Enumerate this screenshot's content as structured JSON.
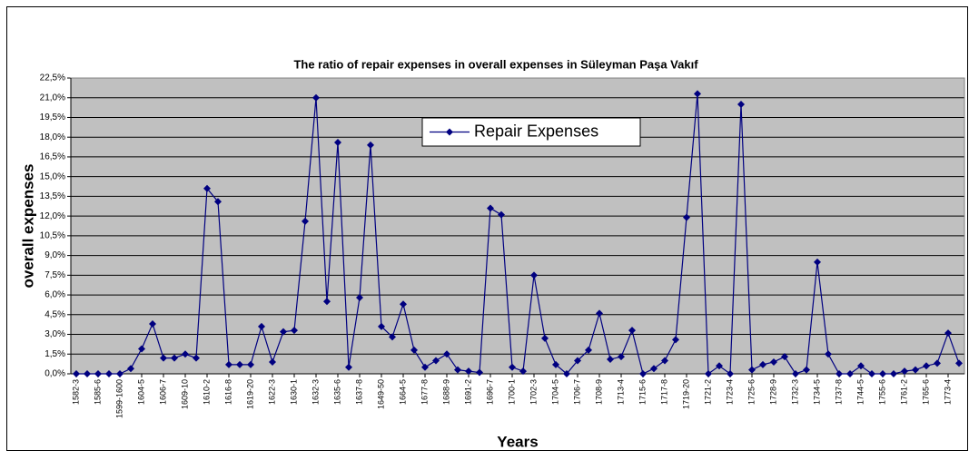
{
  "chart_data": {
    "type": "line",
    "title": "The ratio of repair expenses in overall expenses in Süleyman Paşa Vakıf",
    "x_label": "Years",
    "y_label": "overall expenses",
    "categories": [
      "1582-3",
      null,
      "1585-6",
      null,
      "1599-1600",
      null,
      "1604-5",
      null,
      "1606-7",
      null,
      "1609-10",
      null,
      "1610-2",
      null,
      "1616-8",
      null,
      "1619-20",
      null,
      "1622-3",
      null,
      "1630-1",
      null,
      "1632-3",
      null,
      "1635-6",
      null,
      "1637-8",
      null,
      "1649-50",
      null,
      "1664-5",
      null,
      "1677-8",
      null,
      "1688-9",
      null,
      "1691-2",
      null,
      "1696-7",
      null,
      "1700-1",
      null,
      "1702-3",
      null,
      "1704-5",
      null,
      "1706-7",
      null,
      "1708-9",
      null,
      "1713-4",
      null,
      "1715-6",
      null,
      "1717-8",
      null,
      "1719-20",
      null,
      "1721-2",
      null,
      "1723-4",
      null,
      "1725-6",
      null,
      "1728-9",
      null,
      "1732-3",
      null,
      "1734-5",
      null,
      "1737-8",
      null,
      "1744-5",
      null,
      "1755-6",
      null,
      "1761-2",
      null,
      "1765-6",
      null,
      "1773-4",
      null
    ],
    "series": [
      {
        "name": "Repair Expenses",
        "color": "#000080",
        "values": [
          0,
          0,
          0,
          0,
          0,
          0.4,
          1.9,
          3.8,
          1.2,
          1.2,
          1.5,
          1.2,
          14.1,
          13.1,
          0.7,
          0.7,
          0.7,
          3.6,
          0.9,
          3.2,
          3.3,
          11.6,
          21.0,
          5.5,
          17.6,
          0.5,
          5.8,
          17.4,
          3.6,
          2.8,
          5.3,
          1.8,
          0.5,
          1.0,
          1.5,
          0.3,
          0.2,
          0.1,
          12.6,
          12.1,
          0.5,
          0.2,
          7.5,
          2.7,
          0.7,
          0,
          1.0,
          1.8,
          4.6,
          1.1,
          1.3,
          3.3,
          0,
          0.4,
          1.0,
          2.6,
          11.9,
          21.3,
          0,
          0.6,
          0,
          20.5,
          0.3,
          0.7,
          0.9,
          1.3,
          0,
          0.3,
          8.5,
          1.5,
          0,
          0,
          0.6,
          0,
          0,
          0,
          0.2,
          0.3,
          0.6,
          0.8,
          3.1,
          0.8
        ]
      }
    ],
    "ylim": [
      0,
      22.5
    ],
    "yticks": [
      {
        "value": 0,
        "label": "0,0%"
      },
      {
        "value": 1.5,
        "label": "1,5%"
      },
      {
        "value": 3,
        "label": "3,0%"
      },
      {
        "value": 4.5,
        "label": "4,5%"
      },
      {
        "value": 6,
        "label": "6,0%"
      },
      {
        "value": 7.5,
        "label": "7,5%"
      },
      {
        "value": 9,
        "label": "9,0%"
      },
      {
        "value": 10.5,
        "label": "10,5%"
      },
      {
        "value": 12,
        "label": "12,0%"
      },
      {
        "value": 13.5,
        "label": "13,5%"
      },
      {
        "value": 15,
        "label": "15,0%"
      },
      {
        "value": 16.5,
        "label": "16,5%"
      },
      {
        "value": 18,
        "label": "18,0%"
      },
      {
        "value": 19.5,
        "label": "19,5%"
      },
      {
        "value": 21,
        "label": "21,0%"
      },
      {
        "value": 22.5,
        "label": "22,5%"
      }
    ],
    "grid": true,
    "legend": "top-center",
    "plot_background": "#c0c0c0"
  }
}
